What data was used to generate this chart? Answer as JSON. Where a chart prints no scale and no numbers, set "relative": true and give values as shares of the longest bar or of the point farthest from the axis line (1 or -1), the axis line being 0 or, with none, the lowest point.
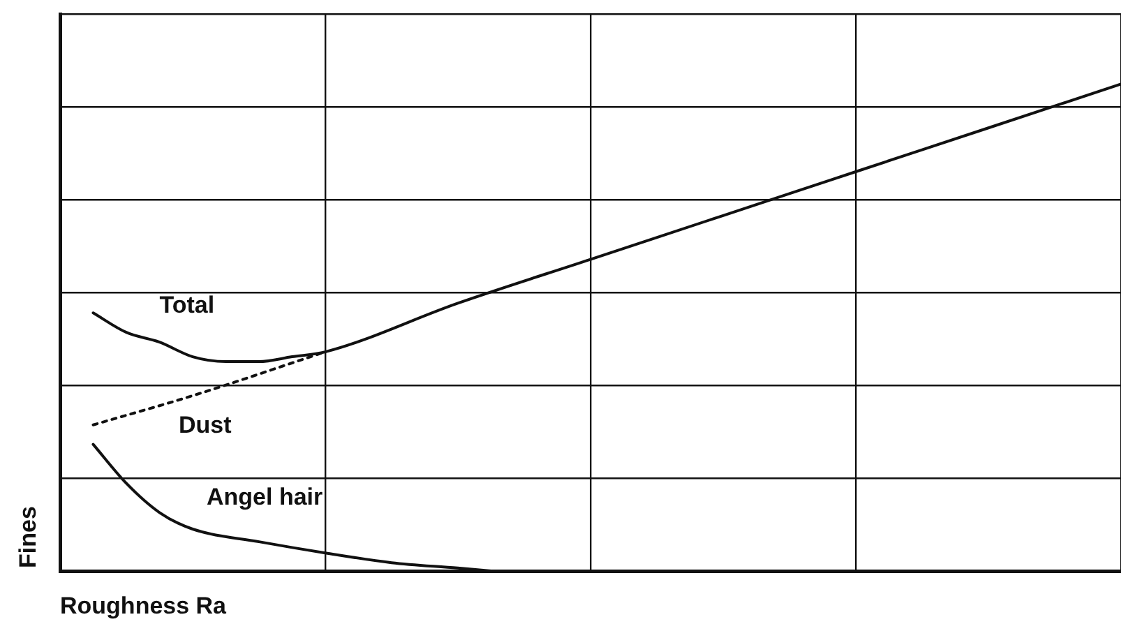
{
  "chart_data": {
    "type": "line",
    "relative": true,
    "xlabel": "Roughness Ra",
    "ylabel": "Fines",
    "grid": true,
    "tick_labels": false,
    "legend": false,
    "marker": "none",
    "categories": [
      null,
      null,
      null,
      null,
      null,
      null,
      null,
      null,
      null,
      null,
      null,
      null,
      null,
      null,
      null,
      null,
      null,
      null,
      null,
      null,
      null,
      null,
      null,
      null,
      null,
      null,
      null,
      null,
      null,
      null,
      null,
      null,
      null
    ],
    "series": [
      {
        "name": "Total",
        "color": "#111111",
        "line_style": "solid",
        "values": [
          null,
          0.53,
          0.49,
          0.47,
          0.44,
          0.43,
          0.43,
          0.44,
          0.45,
          null,
          null,
          null,
          0.55,
          null,
          null,
          null,
          0.64,
          null,
          null,
          null,
          0.73,
          null,
          null,
          null,
          0.82,
          null,
          null,
          null,
          0.91,
          null,
          null,
          null,
          1
        ]
      },
      {
        "name": "Dust",
        "color": "#111111",
        "line_style": "dotted",
        "values": [
          null,
          0.3,
          null,
          null,
          0.36,
          null,
          null,
          null,
          0.45,
          null,
          null,
          null,
          null,
          null,
          null,
          null,
          null,
          null,
          null,
          null,
          null,
          null,
          null,
          null,
          null,
          null,
          null,
          null,
          null,
          null,
          null,
          null,
          null
        ]
      },
      {
        "name": "Angel hair",
        "color": "#111111",
        "line_style": "solid",
        "values": [
          null,
          0.26,
          0.18,
          0.12,
          0.086,
          null,
          0.06,
          null,
          0.037,
          null,
          0.017,
          null,
          0.006,
          0,
          null,
          null,
          null,
          null,
          null,
          null,
          null,
          null,
          null,
          null,
          null,
          null,
          null,
          null,
          null,
          null,
          null,
          null,
          null
        ]
      }
    ]
  }
}
